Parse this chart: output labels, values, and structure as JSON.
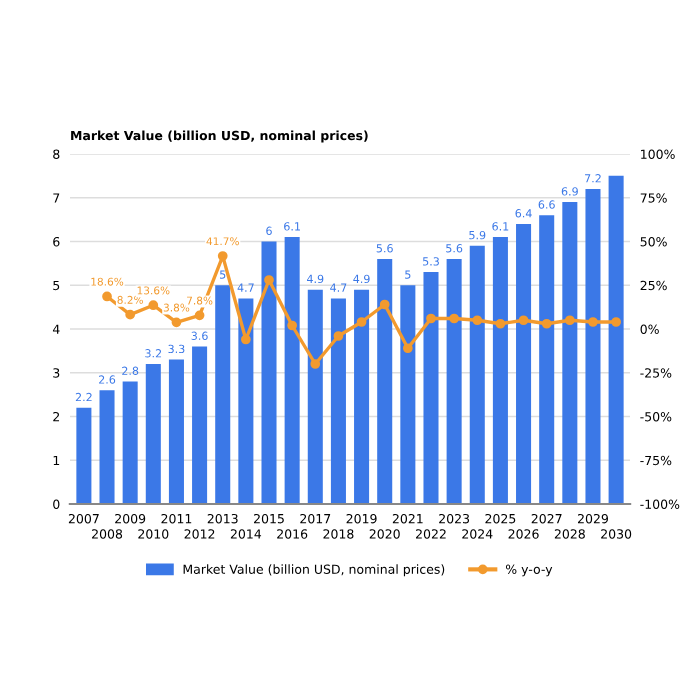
{
  "chart_data": {
    "type": "bar",
    "title": "Market Value (billion USD, nominal prices)",
    "categories": [
      "2007",
      "2008",
      "2009",
      "2010",
      "2011",
      "2012",
      "2013",
      "2014",
      "2015",
      "2016",
      "2017",
      "2018",
      "2019",
      "2020",
      "2021",
      "2022",
      "2023",
      "2024",
      "2025",
      "2026",
      "2027",
      "2028",
      "2029",
      "2030"
    ],
    "series": [
      {
        "name": "Market Value (billion USD, nominal prices)",
        "color": "#3b78e7",
        "values": [
          2.2,
          2.6,
          2.8,
          3.2,
          3.3,
          3.6,
          5,
          4.7,
          6,
          6.1,
          4.9,
          4.7,
          4.9,
          5.6,
          5,
          5.3,
          5.6,
          5.9,
          6.1,
          6.4,
          6.6,
          6.9,
          7.2,
          7.5
        ],
        "value_labels": [
          "2.2",
          "2.6",
          "2.8",
          "3.2",
          "3.3",
          "3.6",
          "5",
          "4.7",
          "6",
          "6.1",
          "4.9",
          "4.7",
          "4.9",
          "5.6",
          "5",
          "5.3",
          "5.6",
          "5.9",
          "6.1",
          "6.4",
          "6.6",
          "6.9",
          "7.2",
          null
        ]
      },
      {
        "name": "% y-o-y",
        "type": "line",
        "axis": "y2",
        "color": "#f29a2e",
        "marker": "circle",
        "values": [
          null,
          18.6,
          8.2,
          13.6,
          3.8,
          7.8,
          41.7,
          -6,
          28,
          2,
          -20,
          -4,
          4,
          14,
          -11,
          6,
          6,
          5,
          3,
          5,
          3,
          5,
          4,
          4
        ],
        "value_labels": [
          null,
          "18.6%",
          "8.2%",
          "13.6%",
          "3.8%",
          "7.8%",
          "41.7%",
          null,
          null,
          null,
          null,
          null,
          null,
          null,
          null,
          null,
          null,
          null,
          null,
          null,
          null,
          null,
          null,
          null
        ]
      }
    ],
    "ylim": [
      0,
      8
    ],
    "yticks": [
      0,
      1,
      2,
      3,
      4,
      5,
      6,
      7,
      8
    ],
    "y2lim": [
      -100,
      100
    ],
    "y2ticks": [
      {
        "value": -100,
        "label": "-100%"
      },
      {
        "value": -75,
        "label": "-75%"
      },
      {
        "value": -50,
        "label": "-50%"
      },
      {
        "value": -25,
        "label": "-25%"
      },
      {
        "value": 0,
        "label": "0%"
      },
      {
        "value": 25,
        "label": "25%"
      },
      {
        "value": 50,
        "label": "50%"
      },
      {
        "value": 75,
        "label": "75%"
      },
      {
        "value": 100,
        "label": "100%"
      }
    ],
    "grid": "y",
    "legend": "bottom"
  }
}
